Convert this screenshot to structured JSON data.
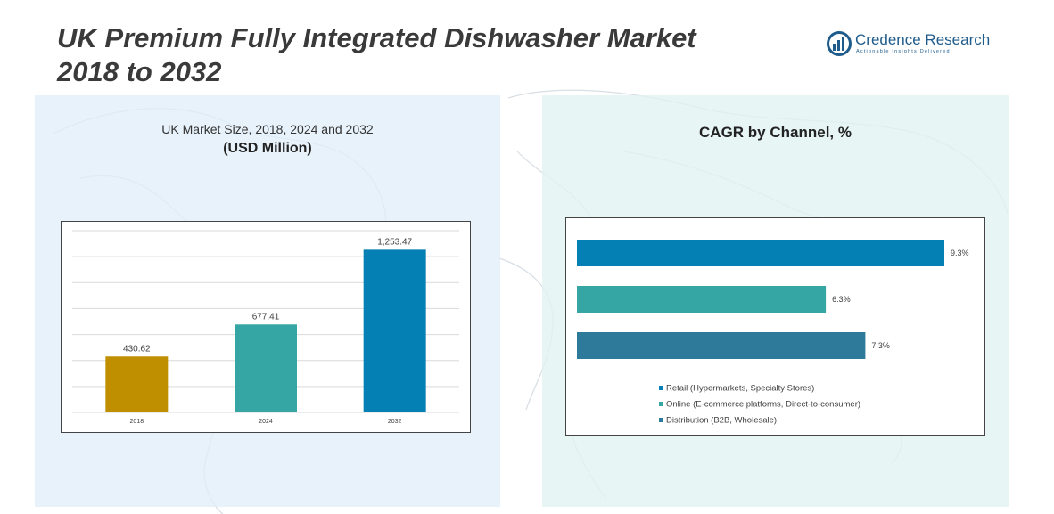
{
  "title": {
    "line1": "UK Premium Fully Integrated Dishwasher Market",
    "line2": "2018 to 2032"
  },
  "logo": {
    "name": "Credence Research",
    "tagline": "Actionable Insights Delivered"
  },
  "left_panel": {
    "subtitle": "UK Market Size, 2018, 2024 and 2032",
    "unit": "(USD Million)"
  },
  "right_panel": {
    "subtitle": "CAGR by Channel, %"
  },
  "colors": {
    "gold": "#C08F00",
    "teal": "#36A6A4",
    "blue": "#0580B5",
    "steel": "#2E7A9A"
  },
  "chart_data": [
    {
      "type": "bar",
      "title": "UK Market Size, 2018, 2024 and 2032",
      "categories": [
        "2018",
        "2024",
        "2032"
      ],
      "values": [
        430.62,
        677.41,
        1253.47
      ],
      "labels": [
        "430.62",
        "677.41",
        "1,253.47"
      ],
      "colors": [
        "#C08F00",
        "#36A6A4",
        "#0580B5"
      ],
      "ylim": [
        0,
        1400
      ],
      "grid": true,
      "unit": "USD Million"
    },
    {
      "type": "bar",
      "orientation": "horizontal",
      "title": "CAGR by Channel, %",
      "categories": [
        "Retail (Hypermarkets, Specialty Stores)",
        "Online (E-commerce platforms, Direct-to-consumer)",
        "Distribution (B2B, Wholesale)"
      ],
      "values": [
        9.3,
        6.3,
        7.3
      ],
      "labels": [
        "9.3%",
        "6.3%",
        "7.3%"
      ],
      "colors": [
        "#0580B5",
        "#36A6A4",
        "#2E7A9A"
      ],
      "xlim": [
        0,
        9.3
      ],
      "legend": "bottom"
    }
  ]
}
